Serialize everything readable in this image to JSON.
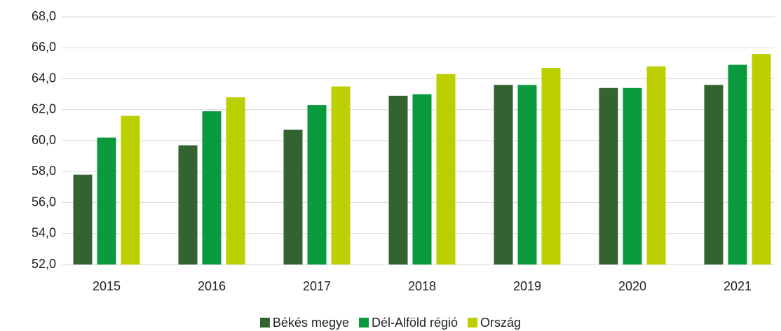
{
  "chart_data": {
    "type": "bar",
    "categories": [
      "2015",
      "2016",
      "2017",
      "2018",
      "2019",
      "2020",
      "2021"
    ],
    "series": [
      {
        "name": "Békés megye",
        "color": "#336331",
        "values": [
          57.8,
          59.7,
          60.7,
          62.9,
          63.6,
          63.4,
          63.6
        ]
      },
      {
        "name": "Dél-Alföld régió",
        "color": "#0a9a3e",
        "values": [
          60.2,
          61.9,
          62.3,
          63.0,
          63.6,
          63.4,
          64.9
        ]
      },
      {
        "name": "Ország",
        "color": "#bccf00",
        "values": [
          61.6,
          62.8,
          63.5,
          64.3,
          64.7,
          64.8,
          65.6
        ]
      }
    ],
    "ylim": [
      52,
      68
    ],
    "yticks": [
      {
        "value": 52,
        "label": "52,0"
      },
      {
        "value": 54,
        "label": "54,0"
      },
      {
        "value": 56,
        "label": "56,0"
      },
      {
        "value": 58,
        "label": "58,0"
      },
      {
        "value": 60,
        "label": "60,0"
      },
      {
        "value": 62,
        "label": "62,0"
      },
      {
        "value": 64,
        "label": "64,0"
      },
      {
        "value": 66,
        "label": "66,0"
      },
      {
        "value": 68,
        "label": "68,0"
      }
    ],
    "grid": true,
    "legend": "bottom"
  }
}
